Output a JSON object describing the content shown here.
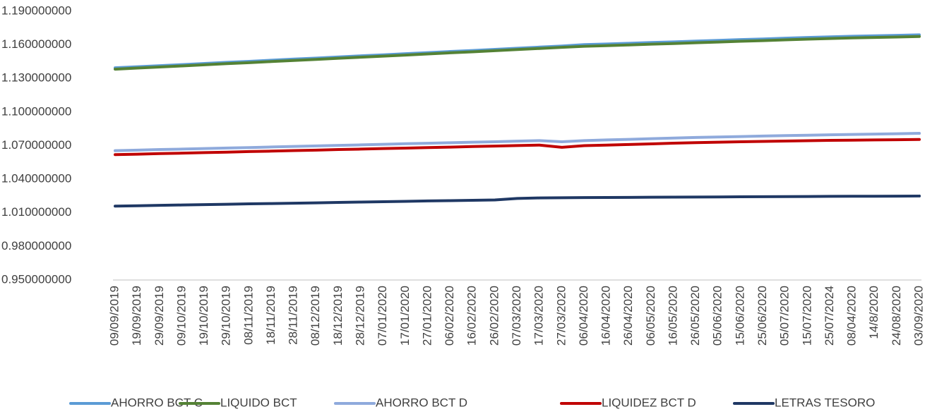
{
  "chart_data": {
    "type": "line",
    "categories": [
      "09/09/2019",
      "19/09/2019",
      "29/09/2019",
      "09/10/2019",
      "19/10/2019",
      "29/10/2019",
      "08/11/2019",
      "18/11/2019",
      "28/11/2019",
      "08/12/2019",
      "18/12/2019",
      "28/12/2019",
      "07/01/2020",
      "17/01/2020",
      "27/01/2020",
      "06/02/2020",
      "16/02/2020",
      "26/02/2020",
      "07/03/2020",
      "17/03/2020",
      "27/03/2020",
      "06/04/2020",
      "16/04/2020",
      "26/04/2020",
      "06/05/2020",
      "16/05/2020",
      "26/05/2020",
      "05/06/2020",
      "15/06/2020",
      "25/06/2020",
      "05/07/2020",
      "15/07/2020",
      "25/07/2024",
      "08/04/2020",
      "14/8/2020",
      "24/08/2020",
      "03/09/2020"
    ],
    "series": [
      {
        "name": "AHORRO BCT C",
        "color": "#5b9bd5",
        "values": [
          1.1395,
          1.1405,
          1.1414,
          1.1424,
          1.1434,
          1.1444,
          1.1453,
          1.1463,
          1.1473,
          1.1482,
          1.1492,
          1.1502,
          1.1511,
          1.1521,
          1.1531,
          1.1541,
          1.155,
          1.156,
          1.157,
          1.158,
          1.159,
          1.1602,
          1.1608,
          1.1614,
          1.1621,
          1.1627,
          1.1634,
          1.164,
          1.1647,
          1.1653,
          1.166,
          1.1666,
          1.1672,
          1.1677,
          1.1681,
          1.1685,
          1.169
        ]
      },
      {
        "name": "LIQUIDO BCT",
        "color": "#548235",
        "values": [
          1.1383,
          1.1393,
          1.1402,
          1.1412,
          1.1422,
          1.1432,
          1.1441,
          1.1451,
          1.1461,
          1.147,
          1.148,
          1.149,
          1.1499,
          1.1509,
          1.1519,
          1.1529,
          1.1538,
          1.1548,
          1.1558,
          1.1568,
          1.1578,
          1.1587,
          1.1593,
          1.1599,
          1.1606,
          1.1612,
          1.1619,
          1.1625,
          1.1632,
          1.1638,
          1.1645,
          1.1651,
          1.1657,
          1.1662,
          1.1666,
          1.167,
          1.1675
        ]
      },
      {
        "name": "AHORRO BCT D",
        "color": "#8faadc",
        "values": [
          1.0655,
          1.066,
          1.0665,
          1.0669,
          1.0674,
          1.0679,
          1.0683,
          1.0688,
          1.0693,
          1.0698,
          1.0702,
          1.0707,
          1.0712,
          1.0717,
          1.0721,
          1.0726,
          1.0731,
          1.0735,
          1.074,
          1.0745,
          1.0735,
          1.0745,
          1.0751,
          1.0756,
          1.0762,
          1.0768,
          1.0773,
          1.0777,
          1.0781,
          1.0786,
          1.079,
          1.0793,
          1.0797,
          1.08,
          1.0803,
          1.0806,
          1.081
        ]
      },
      {
        "name": "LIQUIDEZ BCT D",
        "color": "#c00000",
        "values": [
          1.062,
          1.0624,
          1.0629,
          1.0633,
          1.0638,
          1.0642,
          1.0647,
          1.0651,
          1.0656,
          1.066,
          1.0665,
          1.0669,
          1.0674,
          1.0678,
          1.0683,
          1.0687,
          1.0692,
          1.0696,
          1.0701,
          1.0705,
          1.0685,
          1.07,
          1.0705,
          1.071,
          1.0716,
          1.0722,
          1.0727,
          1.0731,
          1.0735,
          1.0738,
          1.0741,
          1.0744,
          1.0747,
          1.0749,
          1.0751,
          1.0753,
          1.0755
        ]
      },
      {
        "name": "LETRAS TESORO",
        "color": "#1f3864",
        "values": [
          1.016,
          1.0163,
          1.0167,
          1.017,
          1.0173,
          1.0176,
          1.018,
          1.0183,
          1.0186,
          1.0189,
          1.0193,
          1.0196,
          1.0199,
          1.0202,
          1.0206,
          1.0209,
          1.0212,
          1.0215,
          1.0228,
          1.0233,
          1.0235,
          1.0236,
          1.0237,
          1.0238,
          1.0239,
          1.024,
          1.0241,
          1.0242,
          1.0243,
          1.0244,
          1.0245,
          1.0246,
          1.0247,
          1.0248,
          1.0248,
          1.0249,
          1.025
        ]
      }
    ],
    "ylim": [
      0.95,
      1.19
    ],
    "yticks": [
      {
        "value": 0.95,
        "label": "0.950000000"
      },
      {
        "value": 0.98,
        "label": "0.980000000"
      },
      {
        "value": 1.01,
        "label": "1.010000000"
      },
      {
        "value": 1.04,
        "label": "1.040000000"
      },
      {
        "value": 1.07,
        "label": "1.070000000"
      },
      {
        "value": 1.1,
        "label": "1.100000000"
      },
      {
        "value": 1.13,
        "label": "1.130000000"
      },
      {
        "value": 1.16,
        "label": "1.160000000"
      },
      {
        "value": 1.19,
        "label": "1.190000000"
      }
    ],
    "grid": false,
    "legend": "bottom"
  }
}
